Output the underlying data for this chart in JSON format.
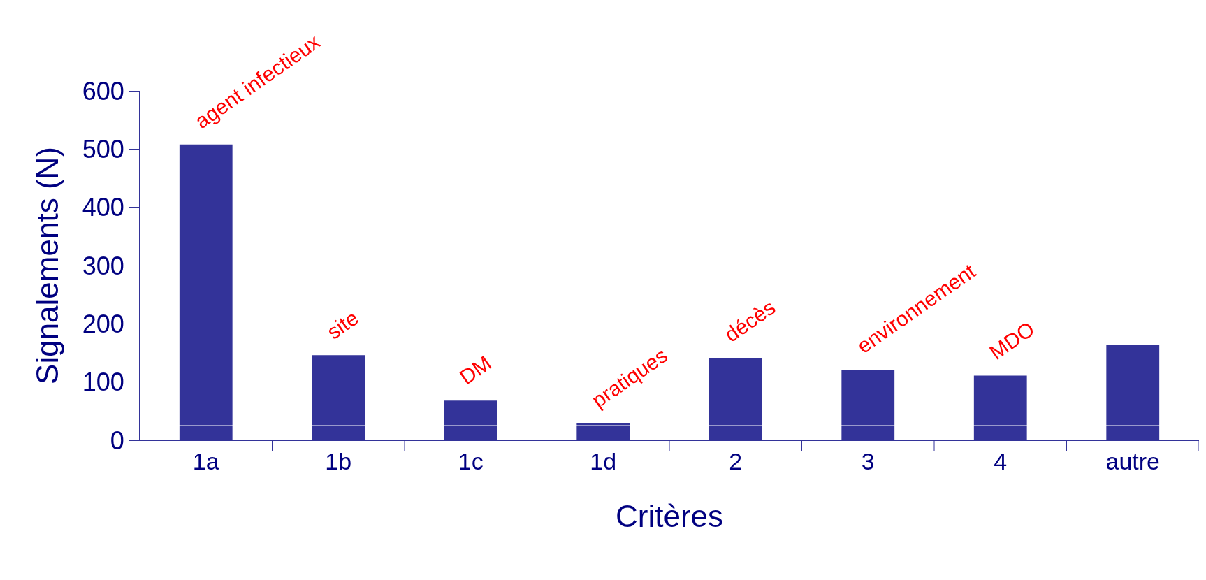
{
  "chart_data": {
    "type": "bar",
    "categories": [
      "1a",
      "1b",
      "1c",
      "1d",
      "2",
      "3",
      "4",
      "autre"
    ],
    "values": [
      508,
      146,
      68,
      29,
      141,
      121,
      111,
      164
    ],
    "color": "#333399",
    "xlabel": "Critères",
    "ylabel": "Signalements (N)",
    "ylim": [
      0,
      600
    ],
    "yticks": [
      0,
      100,
      200,
      300,
      400,
      500,
      600
    ],
    "ref_lines": [
      {
        "axis": "y",
        "value": 25,
        "color": "#ffffff"
      }
    ],
    "annotations": [
      {
        "text": "agent infectieux",
        "x": "1a",
        "y": 508
      },
      {
        "text": "site",
        "x": "1b",
        "y": 146
      },
      {
        "text": "DM",
        "x": "1c",
        "y": 68
      },
      {
        "text": "pratiques",
        "x": "1d",
        "y": 29
      },
      {
        "text": "décès",
        "x": "2",
        "y": 141
      },
      {
        "text": "environnement",
        "x": "3",
        "y": 121
      },
      {
        "text": "MDO",
        "x": "4",
        "y": 111
      }
    ]
  }
}
